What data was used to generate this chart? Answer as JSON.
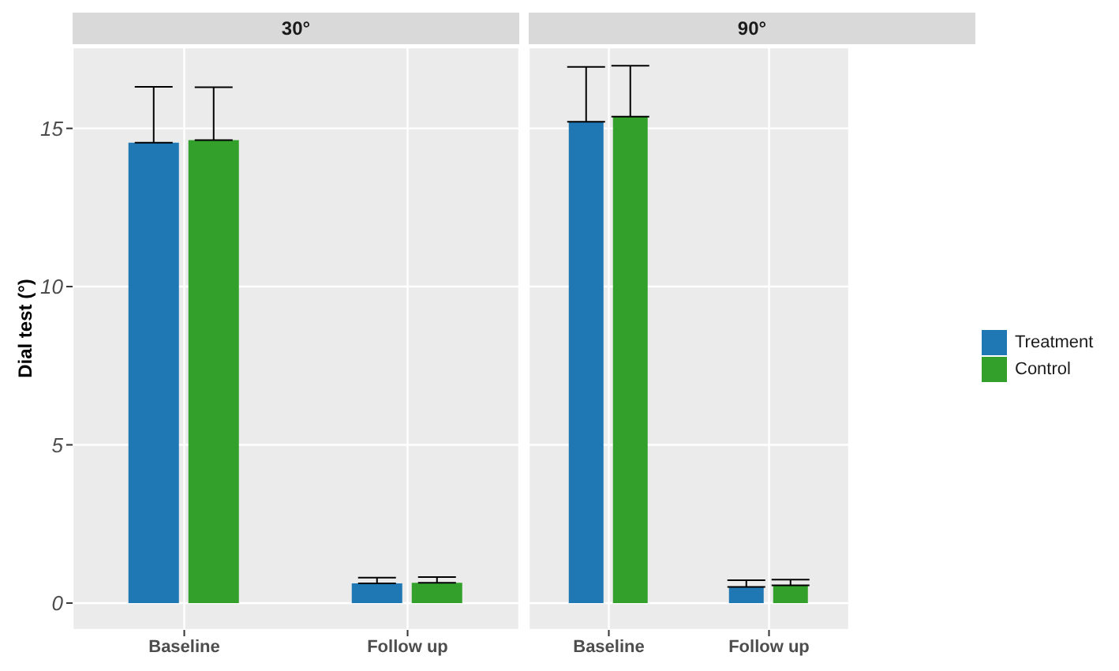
{
  "chart_data": [
    {
      "type": "bar",
      "title": "30°",
      "ylabel": "Dial test  (°)",
      "categories": [
        "Baseline",
        "Follow up"
      ],
      "ylim": [
        -0.85,
        17.56
      ],
      "yticks": [
        0,
        5,
        10,
        15
      ],
      "grid": true,
      "series": [
        {
          "color": "#1f78b4",
          "values": [
            14.55,
            0.62
          ],
          "errors": [
            [
              14.55,
              16.31
            ],
            [
              0.62,
              0.8
            ]
          ]
        },
        {
          "color": "#33a02c",
          "values": [
            14.63,
            0.64
          ],
          "errors": [
            [
              14.63,
              16.3
            ],
            [
              0.64,
              0.82
            ]
          ]
        }
      ]
    },
    {
      "type": "bar",
      "title": "90°",
      "categories": [
        "Baseline",
        "Follow up"
      ],
      "ylim": [
        -0.85,
        17.56
      ],
      "yticks": [
        0,
        5,
        10,
        15
      ],
      "grid": true,
      "legend": "right",
      "tick_labels": "x",
      "series": [
        {
          "name": "Treatment",
          "color": "#1f78b4",
          "values": [
            15.21,
            0.51
          ],
          "errors": [
            [
              15.21,
              16.94
            ],
            [
              0.51,
              0.72
            ]
          ]
        },
        {
          "name": "Control",
          "color": "#33a02c",
          "values": [
            15.37,
            0.56
          ],
          "errors": [
            [
              15.37,
              16.98
            ],
            [
              0.56,
              0.74
            ]
          ]
        }
      ]
    }
  ]
}
